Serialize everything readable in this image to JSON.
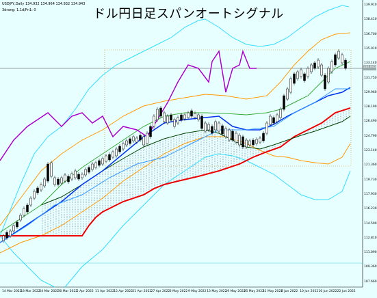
{
  "header": {
    "symbol_line": "USDJPY,Daily  134.932 134.964 134.932 134.943",
    "settings_line": "3drang: 1.1d/Fn1: 0"
  },
  "title": "ドル円日足スパンオートシグナル",
  "price_axis": {
    "labels": [
      "139.910",
      "138.410",
      "136.700",
      "135.010",
      "133.140",
      "131.750",
      "129.960",
      "128.190",
      "126.490",
      "124.790",
      "123.140",
      "121.360",
      "119.730",
      "117.930",
      "116.230",
      "114.500",
      "112.810",
      "111.090",
      "109.360",
      "107.660"
    ],
    "current_price": "134.943"
  },
  "date_axis": {
    "labels": [
      "14 Mar 2022",
      "18 Mar 2022",
      "24 Mar 2022",
      "30 Mar 2022",
      "5 Apr 2022",
      "11 Apr 2022",
      "15 Apr 2022",
      "21 Apr 2022",
      "27 Apr 2022",
      "3 May 2022",
      "9 May 2022",
      "13 May 2022",
      "19 May 2022",
      "25 May 2022",
      "31 May 2022",
      "6 Jun 2022",
      "10 Jun 2022",
      "16 Jun 2022",
      "22 Jun 2022"
    ]
  },
  "colors": {
    "background": "#e8ffff",
    "candle_bull": "#ffffff",
    "candle_bear": "#000000",
    "tenkan": "#0044ff",
    "kijun": "#33aa33",
    "span_a": "#003300",
    "span_b": "#ff0000",
    "chikou": "#aa00cc",
    "bollinger_outer": "#33ddff",
    "bollinger_inner": "#ff9900",
    "cloud_hatch": "#333366"
  }
}
